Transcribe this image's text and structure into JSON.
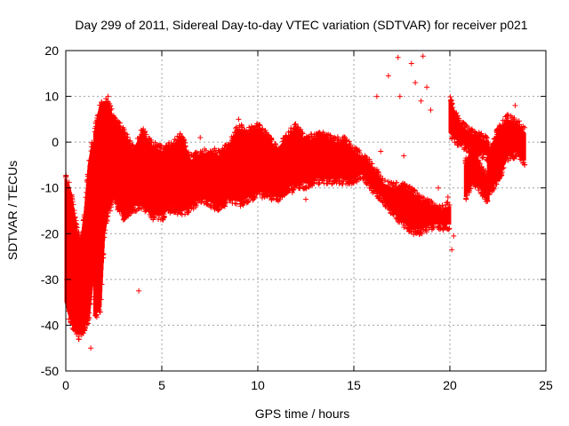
{
  "chart_data": {
    "type": "scatter",
    "title": "Day 299 of 2011, Sidereal Day-to-day VTEC variation (SDTVAR) for receiver p021",
    "xlabel": "GPS time / hours",
    "ylabel": "SDTVAR / TECUs",
    "xlim": [
      0,
      25
    ],
    "ylim": [
      -50,
      20
    ],
    "xticks": [
      0,
      5,
      10,
      15,
      20,
      25
    ],
    "yticks": [
      -50,
      -40,
      -30,
      -20,
      -10,
      0,
      10,
      20
    ],
    "grid": true,
    "marker": "+",
    "color": "#ff0000",
    "series": [
      {
        "name": "SDTVAR",
        "bands": [
          {
            "x": [
              0.0,
              0.2,
              0.4,
              0.6,
              0.8,
              1.0,
              1.2,
              1.4
            ],
            "upper": [
              -8,
              -10,
              -15,
              -20,
              -22,
              -15,
              -5,
              0
            ],
            "lower": [
              -35,
              -38,
              -40,
              -42,
              -42,
              -40,
              -38,
              -30
            ]
          },
          {
            "x": [
              1.5,
              1.8,
              2.0,
              2.2,
              2.5,
              3.0,
              3.5,
              4.0,
              4.5,
              5.0,
              5.5,
              6.0,
              6.5,
              7.0,
              7.5,
              8.0,
              8.5,
              9.0,
              9.5,
              10.0,
              10.5,
              11.0,
              11.5,
              12.0,
              12.5,
              13.0,
              13.5,
              14.0,
              14.5,
              15.0,
              15.3,
              15.6
            ],
            "upper": [
              2,
              8,
              9,
              8,
              5,
              2,
              -2,
              2,
              -1,
              -2,
              -1,
              1,
              -4,
              -3,
              -2,
              -3,
              -1,
              3,
              2,
              3,
              1,
              -2,
              1,
              3,
              0,
              1,
              1,
              0,
              0,
              -2,
              -3,
              -5
            ],
            "lower": [
              -38,
              -36,
              -20,
              -15,
              -12,
              -16,
              -14,
              -14,
              -16,
              -16,
              -14,
              -15,
              -14,
              -12,
              -13,
              -14,
              -12,
              -13,
              -12,
              -11,
              -11,
              -12,
              -10,
              -9,
              -9,
              -8,
              -8,
              -8,
              -8,
              -8,
              -7,
              -7
            ]
          },
          {
            "x": [
              15.5,
              16.0,
              16.5,
              17.0,
              17.5,
              18.0,
              18.5,
              19.0,
              19.5,
              20.0
            ],
            "upper": [
              -3,
              -6,
              -9,
              -10,
              -10,
              -11,
              -13,
              -14,
              -15,
              -14
            ],
            "lower": [
              -7,
              -10,
              -12,
              -15,
              -17,
              -19,
              -19,
              -18,
              -18,
              -18
            ]
          },
          {
            "x": [
              20.0,
              20.5,
              21.0,
              21.5,
              22.0
            ],
            "upper": [
              9,
              4,
              2,
              1,
              0
            ],
            "lower": [
              2,
              0,
              -1,
              -2,
              -3
            ]
          },
          {
            "x": [
              22.0,
              22.5,
              23.0,
              23.5,
              23.9
            ],
            "upper": [
              -3,
              2,
              5,
              4,
              2
            ],
            "lower": [
              -11,
              -8,
              -3,
              -2,
              -4
            ]
          },
          {
            "x": [
              20.8,
              21.2,
              21.6,
              22.0
            ],
            "upper": [
              -5,
              -1,
              -6,
              -8
            ],
            "lower": [
              -12,
              -8,
              -10,
              -13
            ]
          }
        ],
        "outliers": [
          [
            1.3,
            -45
          ],
          [
            2.2,
            10
          ],
          [
            3.8,
            -32.5
          ],
          [
            7.0,
            1
          ],
          [
            9.0,
            5
          ],
          [
            16.2,
            10
          ],
          [
            16.8,
            14.5
          ],
          [
            17.3,
            18.5
          ],
          [
            17.4,
            10
          ],
          [
            18.0,
            17.2
          ],
          [
            18.2,
            13
          ],
          [
            18.6,
            18.8
          ],
          [
            18.8,
            12
          ],
          [
            18.5,
            9
          ],
          [
            19.0,
            7
          ],
          [
            19.4,
            -10
          ],
          [
            20.1,
            -23.5
          ],
          [
            20.2,
            -20.5
          ],
          [
            23.4,
            8
          ],
          [
            21.0,
            -11
          ],
          [
            0.1,
            -24
          ],
          [
            0.3,
            -28
          ],
          [
            0.05,
            -30
          ],
          [
            16.4,
            -2
          ],
          [
            17.6,
            -3
          ],
          [
            17.0,
            -15
          ],
          [
            18.3,
            -16
          ],
          [
            19.9,
            -12
          ],
          [
            12.5,
            -12.5
          ],
          [
            11.8,
            -11
          ]
        ]
      }
    ]
  }
}
